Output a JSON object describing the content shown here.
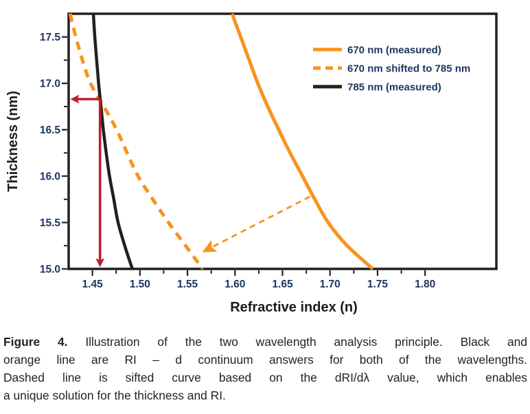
{
  "figure": {
    "caption": {
      "label": "Figure 4.",
      "lines": [
        "Illustration of the two wavelength analysis principle. Black and",
        "orange line are RI – d continuum answers for both of the wavelengths.",
        "Dashed line is sifted curve based on the dRI/dλ value, which enables",
        "a unique solution for the thickness and RI."
      ]
    }
  },
  "chart_data": {
    "type": "line",
    "title": "",
    "xlabel": "Refractive index (n)",
    "ylabel": "Thickness (nm)",
    "xlim": [
      1.425,
      1.875
    ],
    "ylim": [
      15.0,
      17.75
    ],
    "grid": false,
    "legend_position": "top-right",
    "x_ticks": {
      "major": [
        1.45,
        1.5,
        1.55,
        1.6,
        1.65,
        1.7,
        1.75,
        1.8
      ],
      "labels": [
        "1.45",
        "1.50",
        "1.55",
        "1.60",
        "1.65",
        "1.70",
        "1.75",
        "1.80"
      ],
      "minor": [
        1.475,
        1.525,
        1.575,
        1.625,
        1.675,
        1.725,
        1.775
      ]
    },
    "y_ticks": {
      "major": [
        15.0,
        15.5,
        16.0,
        16.5,
        17.0,
        17.5
      ],
      "labels": [
        "15.0",
        "15.5",
        "16.0",
        "16.5",
        "17.0",
        "17.5"
      ],
      "minor": [
        15.25,
        15.75,
        16.25,
        16.75,
        17.25
      ]
    },
    "series": [
      {
        "name": "670 nm (measured)",
        "color": "#F7941E",
        "line_style": "solid",
        "width": 5,
        "points": [
          [
            1.597,
            17.75
          ],
          [
            1.606,
            17.5
          ],
          [
            1.615,
            17.25
          ],
          [
            1.624,
            17.0
          ],
          [
            1.6345,
            16.75
          ],
          [
            1.646,
            16.5
          ],
          [
            1.658,
            16.25
          ],
          [
            1.671,
            16.0
          ],
          [
            1.684,
            15.75
          ],
          [
            1.698,
            15.5
          ],
          [
            1.718,
            15.25
          ],
          [
            1.745,
            15.0
          ]
        ]
      },
      {
        "name": "670 nm shifted to 785 nm",
        "color": "#F7941E",
        "line_style": "dashed",
        "width": 5,
        "points": [
          [
            1.4265,
            17.75
          ],
          [
            1.4325,
            17.5
          ],
          [
            1.4395,
            17.25
          ],
          [
            1.448,
            17.0
          ],
          [
            1.462,
            16.75
          ],
          [
            1.4755,
            16.5
          ],
          [
            1.4865,
            16.25
          ],
          [
            1.498,
            16.0
          ],
          [
            1.5135,
            15.75
          ],
          [
            1.53,
            15.5
          ],
          [
            1.548,
            15.25
          ],
          [
            1.566,
            15.0
          ]
        ]
      },
      {
        "name": "785 nm (measured)",
        "color": "#231F20",
        "line_style": "solid",
        "width": 4.5,
        "points": [
          [
            1.451,
            17.75
          ],
          [
            1.4525,
            17.5
          ],
          [
            1.4545,
            17.25
          ],
          [
            1.4565,
            17.0
          ],
          [
            1.459,
            16.75
          ],
          [
            1.4615,
            16.5
          ],
          [
            1.4645,
            16.25
          ],
          [
            1.468,
            16.0
          ],
          [
            1.4725,
            15.75
          ],
          [
            1.477,
            15.5
          ],
          [
            1.484,
            15.25
          ],
          [
            1.492,
            15.0
          ]
        ]
      }
    ],
    "annotations": {
      "solution_point": {
        "ri": 1.458,
        "thickness": 16.83
      },
      "red_horizontal_arrow": {
        "from_ri": 1.458,
        "thickness": 16.83,
        "points_to": "y-axis"
      },
      "red_vertical_arrow": {
        "ri": 1.458,
        "from_thickness": 16.83,
        "points_to": "x-axis"
      },
      "shift_arrow": {
        "from": [
          1.679,
          15.78
        ],
        "to": [
          1.5655,
          15.18
        ],
        "style": "thin-dashed"
      }
    },
    "colors": {
      "orange": "#F7941E",
      "curve_black": "#231F20",
      "arrow_red": "#BE1E2D",
      "tick_text": "#1C3560",
      "title_text": "#1B1B1E"
    }
  }
}
